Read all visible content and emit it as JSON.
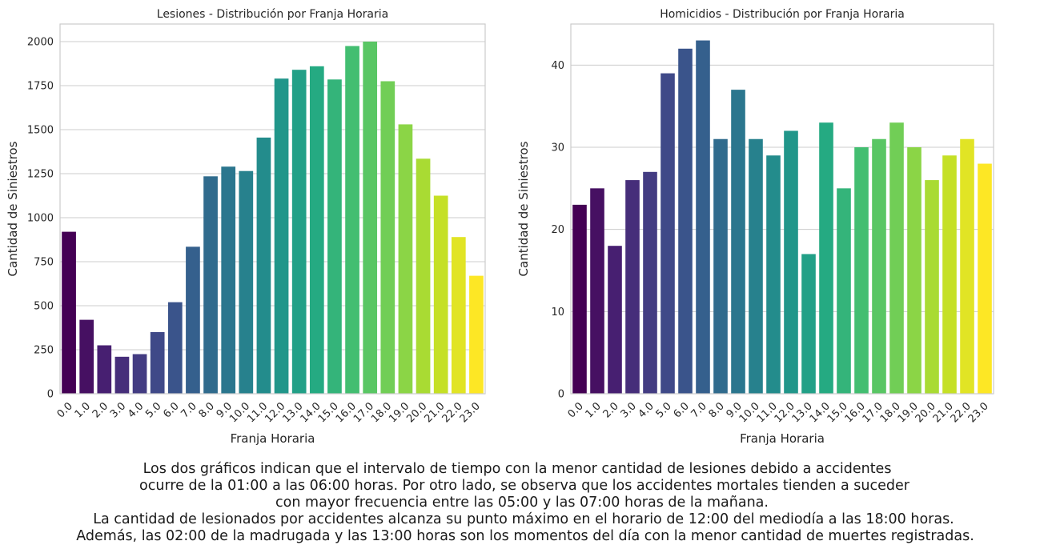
{
  "chart_data": [
    {
      "type": "bar",
      "title": "Lesiones - Distribución por Franja Horaria",
      "xlabel": "Franja Horaria",
      "ylabel": "Cantidad de Siniestros",
      "categories": [
        "0.0",
        "1.0",
        "2.0",
        "3.0",
        "4.0",
        "5.0",
        "6.0",
        "7.0",
        "8.0",
        "9.0",
        "10.0",
        "11.0",
        "12.0",
        "13.0",
        "14.0",
        "15.0",
        "16.0",
        "17.0",
        "18.0",
        "19.0",
        "20.0",
        "21.0",
        "22.0",
        "23.0"
      ],
      "values": [
        920,
        420,
        275,
        210,
        225,
        350,
        520,
        835,
        1235,
        1290,
        1265,
        1455,
        1790,
        1840,
        1860,
        1785,
        1975,
        2000,
        1775,
        1530,
        1335,
        1125,
        890,
        670
      ],
      "ylim": [
        0,
        2100
      ],
      "yticks": [
        0,
        250,
        500,
        750,
        1000,
        1250,
        1500,
        1750,
        2000
      ],
      "grid": "horizontal",
      "palette": "viridis"
    },
    {
      "type": "bar",
      "title": "Homicidios - Distribución por Franja Horaria",
      "xlabel": "Franja Horaria",
      "ylabel": "Cantidad de Siniestros",
      "categories": [
        "0.0",
        "1.0",
        "2.0",
        "3.0",
        "4.0",
        "5.0",
        "6.0",
        "7.0",
        "8.0",
        "9.0",
        "10.0",
        "11.0",
        "12.0",
        "13.0",
        "14.0",
        "15.0",
        "16.0",
        "17.0",
        "18.0",
        "19.0",
        "20.0",
        "21.0",
        "22.0",
        "23.0"
      ],
      "values": [
        23,
        25,
        18,
        26,
        27,
        39,
        42,
        43,
        31,
        37,
        31,
        29,
        32,
        17,
        33,
        25,
        30,
        31,
        33,
        30,
        26,
        29,
        31,
        28
      ],
      "ylim": [
        0,
        45
      ],
      "yticks": [
        0,
        10,
        20,
        30,
        40
      ],
      "grid": "horizontal",
      "palette": "viridis"
    }
  ],
  "caption": {
    "lines": [
      "Los dos gráficos indican que el intervalo de tiempo con la menor cantidad de lesiones debido a accidentes",
      "ocurre de la 01:00 a las 06:00 horas. Por otro lado, se observa que los accidentes mortales tienden a suceder",
      "con mayor frecuencia entre las 05:00 y las 07:00 horas de la mañana.",
      "La cantidad de lesionados por accidentes alcanza su punto máximo en el horario de 12:00 del mediodía a las 18:00 horas.",
      "Además, las 02:00 de la madrugada y las 13:00 horas son los momentos del día con la menor cantidad de muertes registradas."
    ]
  },
  "colors": {
    "viridis": [
      "#440154",
      "#482475",
      "#414487",
      "#355f8d",
      "#2a788e",
      "#21918c",
      "#22a884",
      "#44bf70",
      "#7ad151",
      "#bddf26",
      "#fde725"
    ],
    "grid": "#cccccc",
    "axes_edge": "#cccccc",
    "text": "#262626"
  }
}
